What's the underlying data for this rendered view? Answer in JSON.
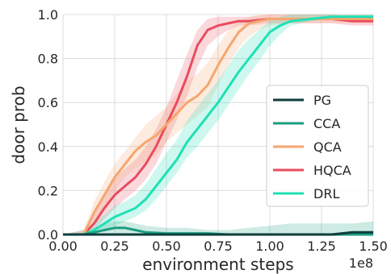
{
  "chart_data": {
    "type": "line",
    "xlabel": "environment steps",
    "x_scale_label": "1e8",
    "ylabel": "door prob",
    "xlim": [
      0.0,
      1.5
    ],
    "ylim": [
      0.0,
      1.0
    ],
    "x_ticks": [
      "0.00",
      "0.25",
      "0.50",
      "0.75",
      "1.00",
      "1.25",
      "1.50"
    ],
    "y_ticks": [
      "0.0",
      "0.2",
      "0.4",
      "0.6",
      "0.8",
      "1.0"
    ],
    "grid": true,
    "legend_position": "center-right",
    "series": [
      {
        "name": "PG",
        "color": "#0d3d3d",
        "x": [
          0.0,
          0.1,
          0.2,
          0.3,
          0.4,
          0.5,
          0.6,
          0.7,
          0.8,
          0.9,
          1.0,
          1.1,
          1.2,
          1.3,
          1.4,
          1.5
        ],
        "y": [
          0.0,
          0.0,
          0.0,
          0.0,
          0.0,
          0.0,
          0.0,
          0.0,
          0.0,
          0.0,
          0.0,
          0.0,
          0.0,
          0.0,
          0.01,
          0.01
        ],
        "band_low": [
          0.0,
          0.0,
          0.0,
          0.0,
          0.0,
          0.0,
          0.0,
          0.0,
          0.0,
          0.0,
          0.0,
          0.0,
          0.0,
          0.0,
          0.0,
          0.0
        ],
        "band_high": [
          0.0,
          0.0,
          0.0,
          0.0,
          0.0,
          0.0,
          0.0,
          0.0,
          0.0,
          0.0,
          0.0,
          0.0,
          0.0,
          0.0,
          0.01,
          0.01
        ]
      },
      {
        "name": "CCA",
        "color": "#1a9e80",
        "x": [
          0.0,
          0.1,
          0.15,
          0.2,
          0.25,
          0.3,
          0.35,
          0.4,
          0.5,
          0.6,
          0.7,
          0.8,
          0.9,
          1.0,
          1.1,
          1.2,
          1.3,
          1.4,
          1.5
        ],
        "y": [
          0.0,
          0.0,
          0.01,
          0.02,
          0.03,
          0.03,
          0.02,
          0.01,
          0.005,
          0.005,
          0.005,
          0.0,
          0.0,
          0.0,
          0.0,
          0.0,
          0.0,
          0.0,
          0.0
        ],
        "band_low": [
          0.0,
          0.0,
          0.0,
          0.0,
          0.0,
          0.0,
          0.0,
          0.0,
          0.0,
          0.0,
          0.0,
          0.0,
          0.0,
          0.0,
          0.0,
          0.0,
          0.0,
          0.0,
          0.0
        ],
        "band_high": [
          0.0,
          0.0,
          0.03,
          0.05,
          0.06,
          0.06,
          0.05,
          0.04,
          0.03,
          0.03,
          0.02,
          0.02,
          0.03,
          0.04,
          0.05,
          0.05,
          0.05,
          0.05,
          0.06
        ]
      },
      {
        "name": "QCA",
        "color": "#f5a66e",
        "x": [
          0.0,
          0.1,
          0.15,
          0.2,
          0.25,
          0.3,
          0.35,
          0.4,
          0.45,
          0.5,
          0.55,
          0.6,
          0.65,
          0.7,
          0.75,
          0.8,
          0.85,
          0.9,
          0.95,
          1.0,
          1.1,
          1.2,
          1.3,
          1.4,
          1.5
        ],
        "y": [
          0.0,
          0.0,
          0.1,
          0.18,
          0.26,
          0.32,
          0.38,
          0.42,
          0.45,
          0.5,
          0.55,
          0.6,
          0.63,
          0.68,
          0.77,
          0.85,
          0.92,
          0.96,
          0.97,
          0.98,
          0.98,
          0.98,
          0.98,
          0.98,
          0.98
        ],
        "band_low": [
          0.0,
          0.0,
          0.05,
          0.12,
          0.2,
          0.26,
          0.3,
          0.33,
          0.36,
          0.42,
          0.46,
          0.5,
          0.54,
          0.58,
          0.68,
          0.77,
          0.85,
          0.9,
          0.93,
          0.95,
          0.96,
          0.96,
          0.96,
          0.96,
          0.96
        ],
        "band_high": [
          0.0,
          0.02,
          0.15,
          0.24,
          0.32,
          0.38,
          0.44,
          0.5,
          0.54,
          0.58,
          0.64,
          0.7,
          0.73,
          0.78,
          0.86,
          0.93,
          0.97,
          0.99,
          1.0,
          1.0,
          1.0,
          1.0,
          1.0,
          1.0,
          1.0
        ]
      },
      {
        "name": "HQCA",
        "color": "#e84c5e",
        "x": [
          0.0,
          0.1,
          0.15,
          0.2,
          0.25,
          0.3,
          0.35,
          0.4,
          0.45,
          0.5,
          0.55,
          0.6,
          0.65,
          0.7,
          0.75,
          0.8,
          0.85,
          0.9,
          1.0,
          1.1,
          1.2,
          1.3,
          1.4,
          1.5
        ],
        "y": [
          0.0,
          0.0,
          0.05,
          0.12,
          0.18,
          0.22,
          0.26,
          0.32,
          0.4,
          0.5,
          0.6,
          0.72,
          0.86,
          0.93,
          0.95,
          0.96,
          0.97,
          0.97,
          0.98,
          0.98,
          0.98,
          0.98,
          0.97,
          0.97
        ],
        "band_low": [
          0.0,
          0.0,
          0.02,
          0.07,
          0.12,
          0.16,
          0.2,
          0.25,
          0.32,
          0.42,
          0.52,
          0.63,
          0.76,
          0.86,
          0.9,
          0.93,
          0.95,
          0.95,
          0.96,
          0.96,
          0.96,
          0.96,
          0.95,
          0.95
        ],
        "band_high": [
          0.0,
          0.02,
          0.1,
          0.18,
          0.26,
          0.3,
          0.34,
          0.4,
          0.48,
          0.58,
          0.7,
          0.82,
          0.93,
          0.98,
          0.99,
          0.99,
          0.99,
          0.99,
          1.0,
          1.0,
          1.0,
          1.0,
          0.99,
          0.99
        ]
      },
      {
        "name": "DRL",
        "color": "#1fe0b4",
        "x": [
          0.0,
          0.1,
          0.15,
          0.2,
          0.25,
          0.3,
          0.35,
          0.4,
          0.45,
          0.5,
          0.55,
          0.6,
          0.65,
          0.7,
          0.75,
          0.8,
          0.85,
          0.9,
          0.95,
          1.0,
          1.05,
          1.1,
          1.2,
          1.3,
          1.4,
          1.5
        ],
        "y": [
          0.0,
          0.0,
          0.02,
          0.05,
          0.08,
          0.1,
          0.12,
          0.16,
          0.22,
          0.28,
          0.34,
          0.42,
          0.48,
          0.54,
          0.6,
          0.67,
          0.74,
          0.8,
          0.86,
          0.92,
          0.95,
          0.97,
          0.98,
          0.99,
          0.99,
          0.99
        ],
        "band_low": [
          0.0,
          0.0,
          0.0,
          0.02,
          0.04,
          0.06,
          0.08,
          0.11,
          0.16,
          0.22,
          0.28,
          0.35,
          0.4,
          0.46,
          0.52,
          0.59,
          0.66,
          0.73,
          0.79,
          0.86,
          0.91,
          0.95,
          0.97,
          0.98,
          0.98,
          0.98
        ],
        "band_high": [
          0.0,
          0.02,
          0.05,
          0.09,
          0.13,
          0.15,
          0.18,
          0.23,
          0.3,
          0.37,
          0.43,
          0.52,
          0.58,
          0.64,
          0.7,
          0.77,
          0.84,
          0.89,
          0.93,
          0.97,
          0.99,
          1.0,
          1.0,
          1.0,
          1.0,
          1.0
        ]
      }
    ]
  }
}
